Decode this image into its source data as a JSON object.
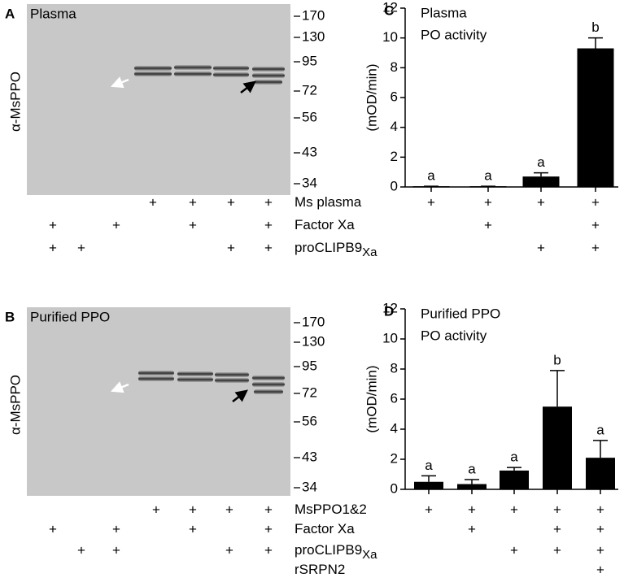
{
  "blots": [
    {
      "panel": "A",
      "title": "Plasma",
      "ylabel": "α-MsPPO",
      "markers": [
        170,
        130,
        95,
        72,
        56,
        43,
        34
      ]
    },
    {
      "panel": "B",
      "title": "Purified PPO",
      "ylabel": "α-MsPPO",
      "markers": [
        170,
        130,
        95,
        72,
        56,
        43,
        34
      ]
    }
  ],
  "conditions_top": [
    {
      "label": "Ms plasma",
      "blot": [
        null,
        null,
        null,
        "+",
        "+",
        "+",
        "+"
      ],
      "chart": [
        "+",
        "+",
        "+",
        "+"
      ]
    },
    {
      "label": "Factor Xa",
      "blot": [
        "+",
        null,
        "+",
        null,
        "+",
        null,
        "+"
      ],
      "chart": [
        null,
        "+",
        null,
        "+"
      ]
    },
    {
      "label": "proCLIPB9",
      "label_subscript": "Xa",
      "blot": [
        "+",
        "+",
        null,
        null,
        null,
        "+",
        "+"
      ],
      "chart": [
        null,
        null,
        "+",
        "+"
      ]
    }
  ],
  "conditions_bottom": [
    {
      "label": "MsPPO1&2",
      "blot": [
        null,
        null,
        null,
        "+",
        "+",
        "+",
        "+"
      ],
      "chart": [
        "+",
        "+",
        "+",
        "+",
        "+"
      ]
    },
    {
      "label": "Factor Xa",
      "blot": [
        "+",
        null,
        "+",
        null,
        "+",
        null,
        "+"
      ],
      "chart": [
        null,
        "+",
        null,
        "+",
        "+"
      ]
    },
    {
      "label": "proCLIPB9",
      "label_subscript": "Xa",
      "blot": [
        null,
        "+",
        "+",
        null,
        null,
        "+",
        "+"
      ],
      "chart": [
        null,
        null,
        "+",
        "+",
        "+"
      ]
    },
    {
      "label": "rSRPN2",
      "blot": [
        null,
        null,
        null,
        null,
        null,
        null,
        null
      ],
      "chart": [
        null,
        null,
        null,
        null,
        "+"
      ]
    }
  ],
  "chart_data": [
    {
      "type": "bar",
      "panel": "C",
      "title": "Plasma",
      "subtitle": "PO activity",
      "ylabel": "(mOD/min)",
      "values": [
        0.05,
        0.05,
        0.7,
        9.3
      ],
      "errors": [
        0,
        0,
        0.25,
        0.7
      ],
      "annotations": [
        "a",
        "a",
        "a",
        "b"
      ],
      "color": "#000000",
      "ylim": [
        0,
        12
      ],
      "yticks": [
        0,
        2,
        4,
        6,
        8,
        10,
        12
      ]
    },
    {
      "type": "bar",
      "panel": "D",
      "title": "Purified PPO",
      "subtitle": "PO activity",
      "ylabel": "(mOD/min)",
      "values": [
        0.5,
        0.35,
        1.25,
        5.5,
        2.1
      ],
      "errors": [
        0.4,
        0.3,
        0.2,
        2.4,
        1.15
      ],
      "annotations": [
        "a",
        "a",
        "a",
        "b",
        "a"
      ],
      "color": "#000000",
      "ylim": [
        0,
        12
      ],
      "yticks": [
        0,
        2,
        4,
        6,
        8,
        10,
        12
      ]
    }
  ]
}
